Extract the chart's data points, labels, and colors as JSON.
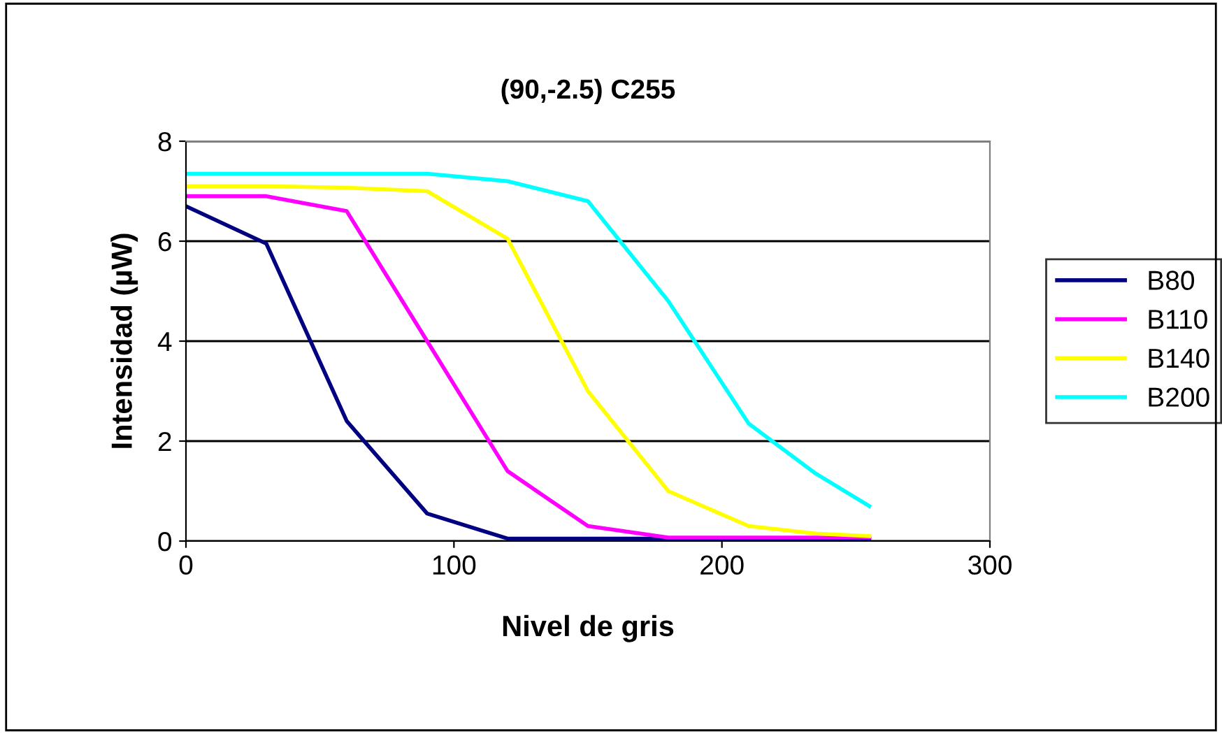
{
  "chart_data": {
    "type": "line",
    "title": "(90,-2.5) C255",
    "xlabel": "Nivel de gris",
    "ylabel": "Intensidad (µW)",
    "x": [
      0,
      30,
      60,
      90,
      120,
      150,
      180,
      210,
      235,
      255
    ],
    "series": [
      {
        "name": "B80",
        "color": "#000080",
        "values": [
          6.7,
          5.95,
          2.4,
          0.55,
          0.05,
          0.05,
          0.05,
          0.05,
          0.05,
          0.05
        ]
      },
      {
        "name": "B110",
        "color": "#ff00ff",
        "values": [
          6.9,
          6.9,
          6.6,
          4.0,
          1.4,
          0.3,
          0.07,
          0.07,
          0.07,
          0.07
        ]
      },
      {
        "name": "B140",
        "color": "#ffff00",
        "values": [
          7.1,
          7.1,
          7.07,
          7.0,
          6.05,
          3.0,
          1.0,
          0.3,
          0.15,
          0.1
        ]
      },
      {
        "name": "B200",
        "color": "#00ffff",
        "values": [
          7.35,
          7.35,
          7.35,
          7.35,
          7.2,
          6.8,
          4.8,
          2.35,
          1.35,
          0.7
        ]
      }
    ],
    "xlim": [
      0,
      300
    ],
    "xticks": [
      0,
      100,
      200,
      300
    ],
    "ylim": [
      0,
      8
    ],
    "yticks": [
      0,
      2,
      4,
      6,
      8
    ],
    "grid": "y",
    "legend": "right",
    "marker": "none",
    "line_style": "solid"
  }
}
